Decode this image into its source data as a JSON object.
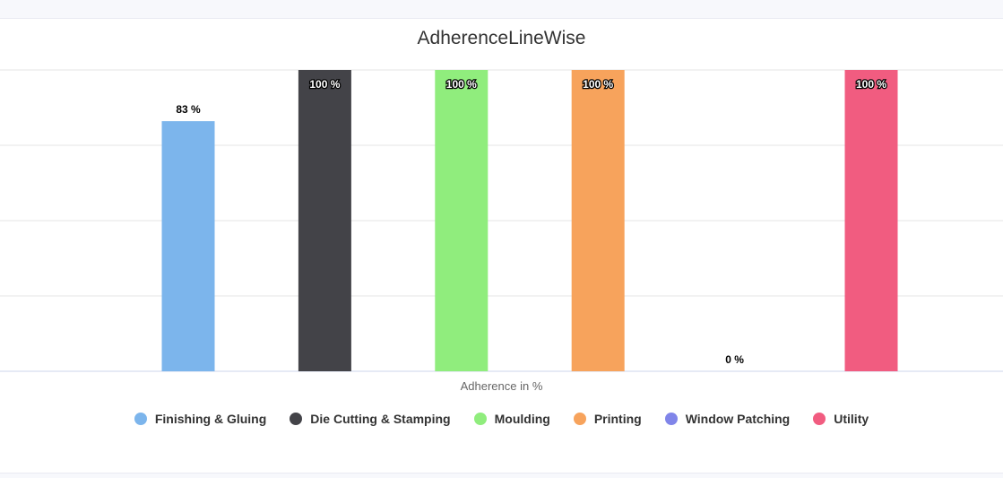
{
  "chart_data": {
    "type": "bar",
    "title": "AdherenceLineWise",
    "xlabel": "Adherence in %",
    "ylabel": "",
    "ylim": [
      0,
      100
    ],
    "value_suffix": " %",
    "grid": true,
    "legend_placement": "bottom",
    "categories": [
      "Finishing & Gluing",
      "Die Cutting & Stamping",
      "Moulding",
      "Printing",
      "Window Patching",
      "Utility"
    ],
    "values": [
      83,
      100,
      100,
      100,
      0,
      100
    ],
    "colors": [
      "#7cb5ec",
      "#434348",
      "#90ed7d",
      "#f7a35c",
      "#8085e9",
      "#f15c80"
    ]
  }
}
